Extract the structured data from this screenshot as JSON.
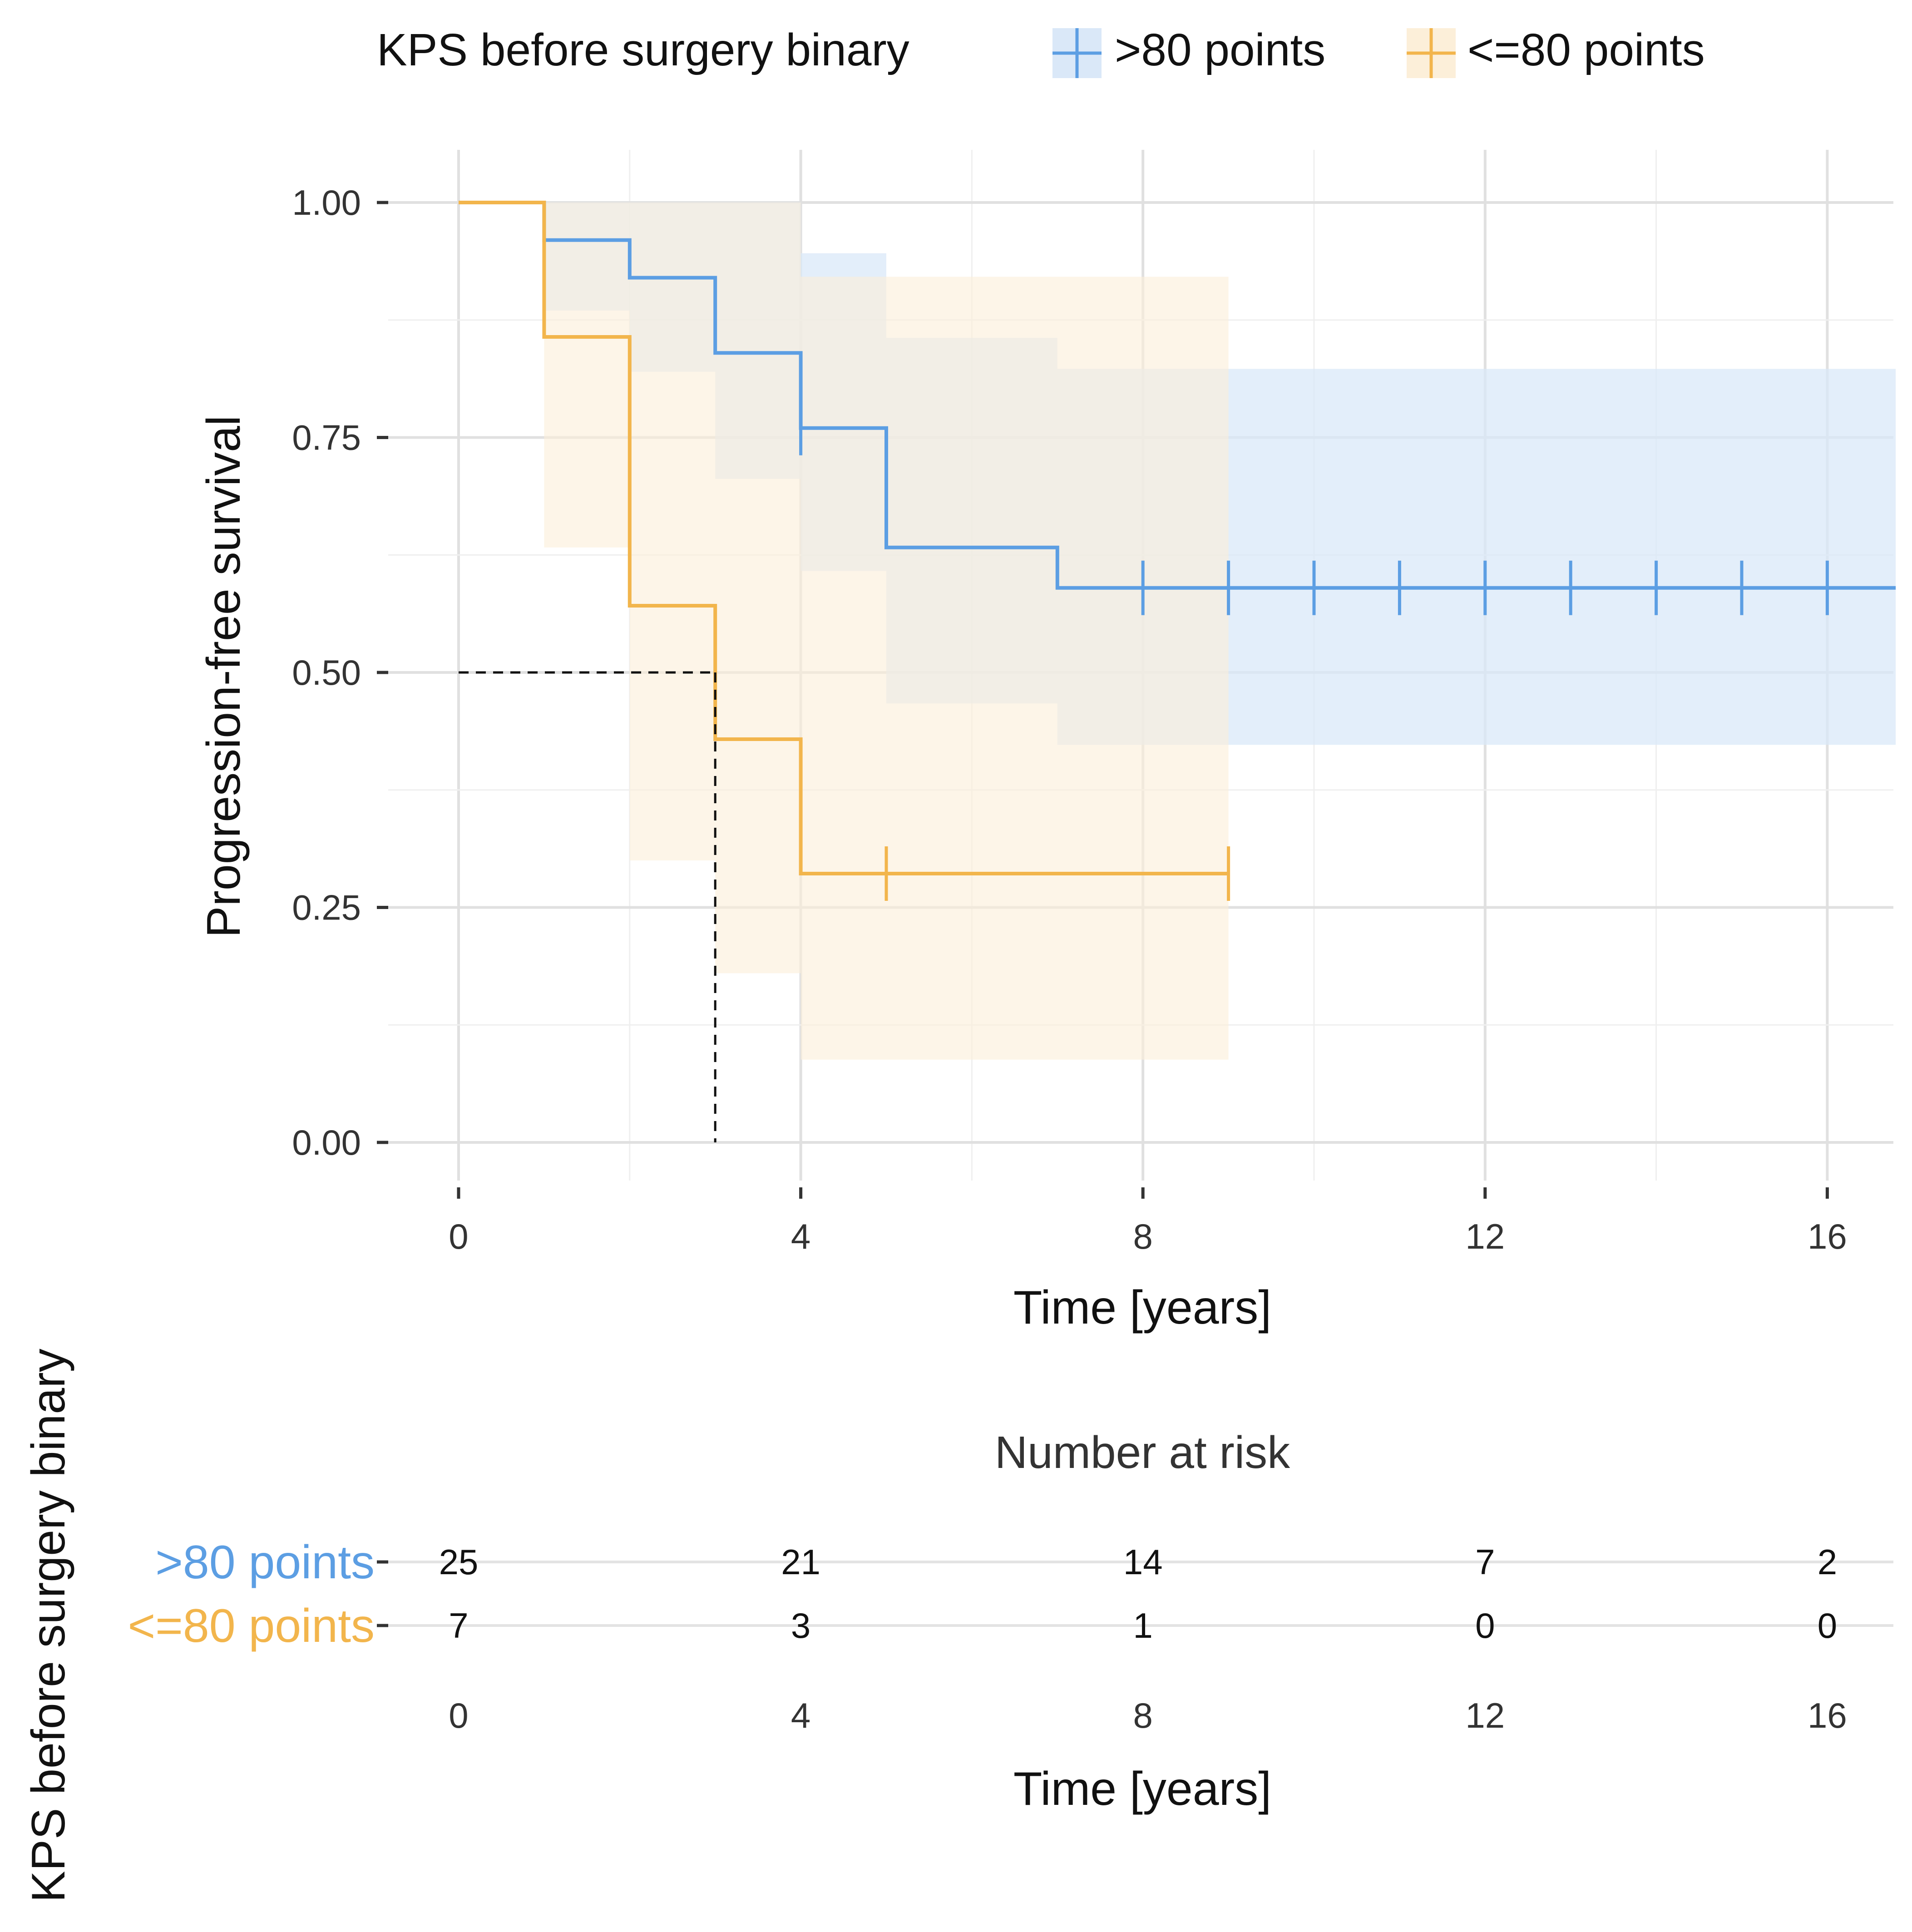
{
  "chart_data": [
    {
      "type": "line",
      "subtype": "kaplan-meier step",
      "title": "",
      "xlabel": "Time [years]",
      "ylabel": "Progression-free survival",
      "xlim": [
        0,
        16.8
      ],
      "ylim": [
        0,
        1
      ],
      "x_ticks": [
        "0",
        "4",
        "8",
        "12",
        "16"
      ],
      "x_tick_values": [
        0,
        4,
        8,
        12,
        16
      ],
      "y_ticks": [
        "0.00",
        "0.25",
        "0.50",
        "0.75",
        "1.00"
      ],
      "y_tick_values": [
        0,
        0.25,
        0.5,
        0.75,
        1.0
      ],
      "grid": true,
      "legend": {
        "title": "KPS before surgery binary",
        "position": "top",
        "entries": [
          ">80 points",
          "<=80 points"
        ]
      },
      "series": [
        {
          "name": ">80 points",
          "color": "#5c9ee3",
          "band_color": "#dae8f8",
          "steps": [
            [
              0,
              1.0
            ],
            [
              1,
              0.96
            ],
            [
              2,
              0.92
            ],
            [
              3,
              0.84
            ],
            [
              4,
              0.76
            ],
            [
              5,
              0.633
            ],
            [
              7,
              0.59
            ],
            [
              16.8,
              0.59
            ]
          ],
          "ci": [
            [
              0,
              1.0,
              1.0
            ],
            [
              1,
              0.885,
              1.0
            ],
            [
              2,
              0.82,
              1.0
            ],
            [
              3,
              0.706,
              1.0
            ],
            [
              4,
              0.608,
              0.946
            ],
            [
              5,
              0.467,
              0.856
            ],
            [
              7,
              0.423,
              0.823
            ],
            [
              16.8,
              0.423,
              0.823
            ]
          ],
          "censor_times": [
            4,
            8,
            9,
            10,
            11,
            12,
            13,
            14,
            15,
            16
          ]
        },
        {
          "name": "<=80 points",
          "color": "#f2b54c",
          "band_color": "#fcefd9",
          "steps": [
            [
              0,
              1.0
            ],
            [
              1,
              0.857
            ],
            [
              2,
              0.571
            ],
            [
              3,
              0.429
            ],
            [
              4,
              0.286
            ],
            [
              9,
              0.286
            ]
          ],
          "ci": [
            [
              0,
              1.0,
              1.0
            ],
            [
              1,
              0.633,
              1.0
            ],
            [
              2,
              0.3,
              1.0
            ],
            [
              3,
              0.18,
              1.0
            ],
            [
              4,
              0.088,
              0.921
            ],
            [
              9,
              0.088,
              0.921
            ]
          ],
          "censor_times": [
            5,
            9
          ]
        }
      ],
      "annotations": [
        {
          "type": "median-line",
          "x": 3,
          "y": 0.5,
          "style": "dashed"
        }
      ]
    },
    {
      "type": "table",
      "title": "Number at risk",
      "ylabel": "KPS before surgery binary",
      "xlabel": "Time [years]",
      "x_ticks": [
        "0",
        "4",
        "8",
        "12",
        "16"
      ],
      "rows": [
        {
          "name": ">80 points",
          "color": "#5c9ee3",
          "values": [
            "25",
            "21",
            "14",
            "7",
            "2"
          ]
        },
        {
          "name": "<=80 points",
          "color": "#f2b54c",
          "values": [
            "7",
            "3",
            "1",
            "0",
            "0"
          ]
        }
      ]
    }
  ]
}
